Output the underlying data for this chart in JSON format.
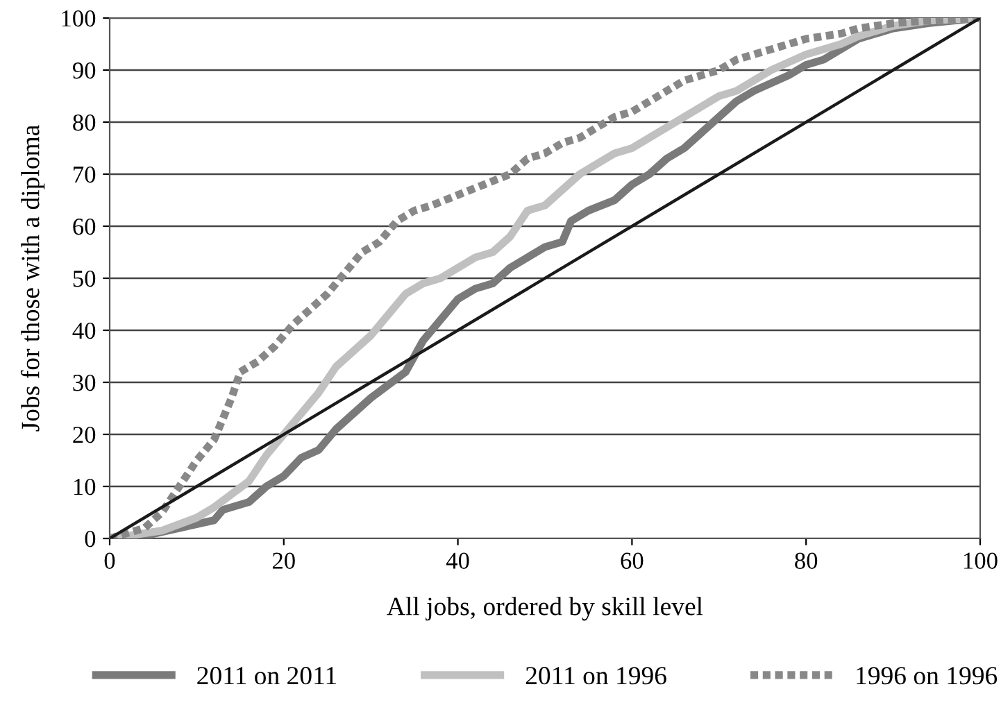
{
  "chart_data": {
    "type": "line",
    "xlabel": "All jobs, ordered by skill level",
    "ylabel": "Jobs for those with a diploma",
    "xlim": [
      0,
      100
    ],
    "ylim": [
      0,
      100
    ],
    "xticks": [
      0,
      20,
      40,
      60,
      80,
      100
    ],
    "yticks": [
      0,
      10,
      20,
      30,
      40,
      50,
      60,
      70,
      80,
      90,
      100
    ],
    "grid": "y",
    "legend": "bottom",
    "marker": "none",
    "series": [
      {
        "name": "2011 on 2011",
        "color": "#7a7a7a",
        "line_style": "solid",
        "x": [
          0,
          4,
          8,
          12,
          13,
          16,
          18,
          20,
          22,
          24,
          26,
          28,
          30,
          32,
          34,
          36,
          38,
          40,
          42,
          44,
          46,
          48,
          50,
          52,
          53,
          55,
          58,
          60,
          62,
          64,
          66,
          68,
          70,
          72,
          74,
          76,
          78,
          80,
          82,
          84,
          86,
          88,
          90,
          94,
          100
        ],
        "values": [
          0,
          0.5,
          2,
          3.5,
          5.5,
          7,
          10,
          12,
          15.5,
          17,
          21,
          24,
          27,
          29.5,
          32,
          38,
          42,
          46,
          48,
          49,
          52,
          54,
          56,
          57,
          61,
          63,
          65,
          68,
          70,
          73,
          75,
          78,
          81,
          84,
          86,
          87.5,
          89,
          91,
          92,
          94,
          96,
          97,
          98,
          99,
          100
        ]
      },
      {
        "name": "2011 on 1996",
        "color": "#c0c0c0",
        "line_style": "solid",
        "x": [
          0,
          6,
          10,
          12,
          14,
          16,
          18,
          20,
          22,
          24,
          26,
          28,
          30,
          32,
          34,
          36,
          38,
          40,
          42,
          44,
          46,
          48,
          50,
          52,
          54,
          56,
          58,
          60,
          62,
          64,
          66,
          68,
          70,
          72,
          74,
          76,
          78,
          80,
          82,
          84,
          86,
          88,
          90,
          94,
          100
        ],
        "values": [
          0,
          1.5,
          4,
          6,
          8.5,
          11,
          16,
          20,
          24,
          28,
          33,
          36,
          39,
          43,
          47,
          49,
          50,
          52,
          54,
          55,
          58,
          63,
          64,
          67,
          70,
          72,
          74,
          75,
          77,
          79,
          81,
          83,
          85,
          86,
          88,
          90,
          91.5,
          93,
          94,
          95,
          96.5,
          97.5,
          98.5,
          99.5,
          100
        ]
      },
      {
        "name": "1996 on 1996",
        "color": "#888888",
        "line_style": "dotted",
        "x": [
          0,
          4,
          6,
          8,
          10,
          12,
          14,
          15,
          17,
          19,
          21,
          23,
          25,
          27,
          29,
          31,
          33,
          35,
          37,
          40,
          43,
          46,
          48,
          50,
          52,
          54,
          56,
          58,
          60,
          62,
          64,
          66,
          68,
          70,
          72,
          74,
          76,
          78,
          80,
          82,
          84,
          86,
          90,
          94,
          100
        ],
        "values": [
          0,
          2,
          5,
          10,
          15,
          19,
          27,
          32,
          34,
          37,
          41,
          44,
          47,
          51,
          55,
          57,
          61,
          63,
          64,
          66,
          68,
          70,
          73,
          74,
          76,
          77,
          79,
          81,
          82,
          84,
          86,
          88,
          89,
          90,
          92,
          93,
          94,
          95,
          96,
          96.5,
          97,
          98,
          99,
          99.5,
          100
        ]
      },
      {
        "color": "#1a1a1a",
        "line_style": "solid",
        "x": [
          0,
          100
        ],
        "values": [
          0,
          100
        ]
      }
    ]
  }
}
